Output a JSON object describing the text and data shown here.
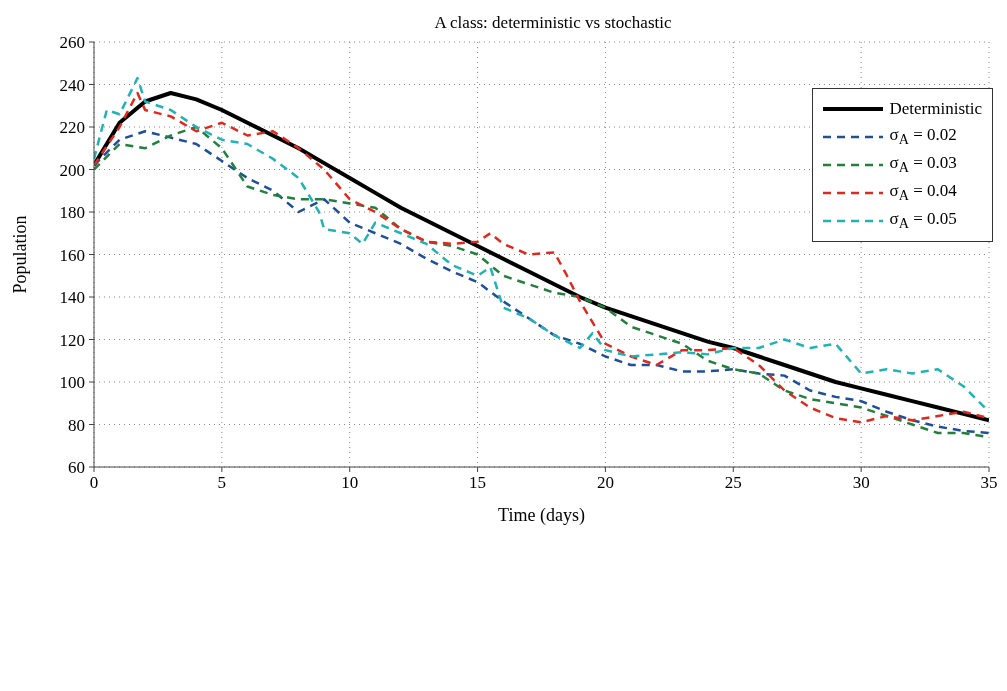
{
  "chart_data": {
    "type": "line",
    "title": "A class: deterministic vs stochastic",
    "xlabel": "Time (days)",
    "ylabel": "Population",
    "xlim": [
      0,
      35
    ],
    "xticks": [
      0,
      5,
      10,
      15,
      20,
      25,
      30,
      35
    ],
    "ylim": [
      60,
      260
    ],
    "yticks": [
      60,
      80,
      100,
      120,
      140,
      160,
      180,
      200,
      220,
      240,
      260
    ],
    "grid": true,
    "legend": "top right",
    "series": [
      {
        "name": "Deterministic",
        "color": "#000000",
        "line_style": "solid",
        "x": [
          0,
          1,
          2,
          3,
          4,
          5,
          6,
          7,
          8,
          9,
          10,
          11,
          12,
          13,
          14,
          15,
          16,
          17,
          18,
          19,
          20,
          21,
          22,
          23,
          24,
          25,
          26,
          27,
          28,
          29,
          30,
          31,
          32,
          33,
          34,
          35
        ],
        "values": [
          202,
          222,
          232,
          236,
          233,
          228,
          222,
          216,
          210,
          203,
          196,
          189,
          182,
          176,
          170,
          164,
          158,
          152,
          146,
          140,
          135,
          131,
          127,
          123,
          119,
          116,
          112,
          108,
          104,
          100,
          97,
          94,
          91,
          88,
          85,
          82
        ]
      },
      {
        "name": "σ$_{A}$ = 0.02",
        "color": "#1f4e9c",
        "line_style": "dashed",
        "x": [
          0,
          1,
          2,
          3,
          4,
          5,
          6,
          7,
          8,
          9,
          10,
          11,
          12,
          13,
          14,
          15,
          16,
          17,
          18,
          19,
          20,
          21,
          22,
          23,
          24,
          25,
          26,
          27,
          28,
          29,
          30,
          31,
          32,
          33,
          34,
          35
        ],
        "values": [
          202,
          214,
          218,
          215,
          212,
          204,
          196,
          190,
          180,
          186,
          175,
          170,
          165,
          158,
          152,
          147,
          138,
          130,
          122,
          118,
          112,
          108,
          108,
          105,
          105,
          106,
          104,
          103,
          96,
          93,
          91,
          86,
          82,
          79,
          77,
          76
        ]
      },
      {
        "name": "σ$_{A}$ = 0.03",
        "color": "#22803c",
        "line_style": "dashed",
        "x": [
          0,
          1,
          2,
          3,
          4,
          5,
          6,
          7,
          8,
          9,
          10,
          11,
          12,
          13,
          14,
          15,
          16,
          17,
          18,
          19,
          20,
          21,
          22,
          23,
          24,
          25,
          26,
          27,
          28,
          29,
          30,
          31,
          32,
          33,
          34,
          35
        ],
        "values": [
          200,
          212,
          210,
          216,
          220,
          210,
          192,
          188,
          186,
          186,
          184,
          182,
          172,
          166,
          164,
          160,
          150,
          146,
          142,
          140,
          135,
          126,
          122,
          118,
          110,
          106,
          104,
          96,
          92,
          90,
          88,
          84,
          80,
          76,
          76,
          74
        ]
      },
      {
        "name": "σ$_{A}$ = 0.04",
        "color": "#e0281e",
        "line_style": "dashed",
        "x": [
          0,
          1,
          1.7,
          2,
          3,
          4,
          5,
          6,
          7,
          8,
          9,
          10,
          11,
          12,
          13,
          14,
          15,
          15.5,
          16,
          17,
          18,
          18.5,
          19,
          20,
          21,
          22,
          23,
          24,
          25,
          26,
          27,
          28,
          29,
          30,
          31,
          32,
          33,
          34,
          35
        ],
        "values": [
          202,
          220,
          236,
          228,
          225,
          218,
          222,
          216,
          218,
          210,
          200,
          186,
          180,
          172,
          166,
          165,
          166,
          170,
          165,
          160,
          161,
          150,
          138,
          118,
          112,
          108,
          115,
          115,
          116,
          108,
          96,
          88,
          83,
          81,
          84,
          82,
          84,
          86,
          83
        ]
      },
      {
        "name": "σ$_{A}$ = 0.05",
        "color": "#20b2b4",
        "line_style": "dashed",
        "x": [
          0,
          0.5,
          1,
          1.7,
          2,
          3,
          4,
          5,
          6,
          7,
          8,
          8.8,
          9,
          10,
          10.5,
          11,
          12,
          13,
          14,
          15,
          15.5,
          16,
          17,
          18,
          19,
          19.5,
          20,
          21,
          22,
          23,
          24,
          25,
          26,
          27,
          28,
          29,
          30,
          31,
          32,
          33,
          34,
          35
        ],
        "values": [
          205,
          228,
          226,
          243,
          232,
          228,
          220,
          214,
          212,
          205,
          196,
          180,
          172,
          170,
          165,
          175,
          170,
          165,
          155,
          150,
          154,
          135,
          130,
          122,
          116,
          123,
          115,
          112,
          113,
          114,
          113,
          116,
          116,
          120,
          116,
          118,
          104,
          106,
          104,
          106,
          98,
          86
        ]
      }
    ]
  }
}
